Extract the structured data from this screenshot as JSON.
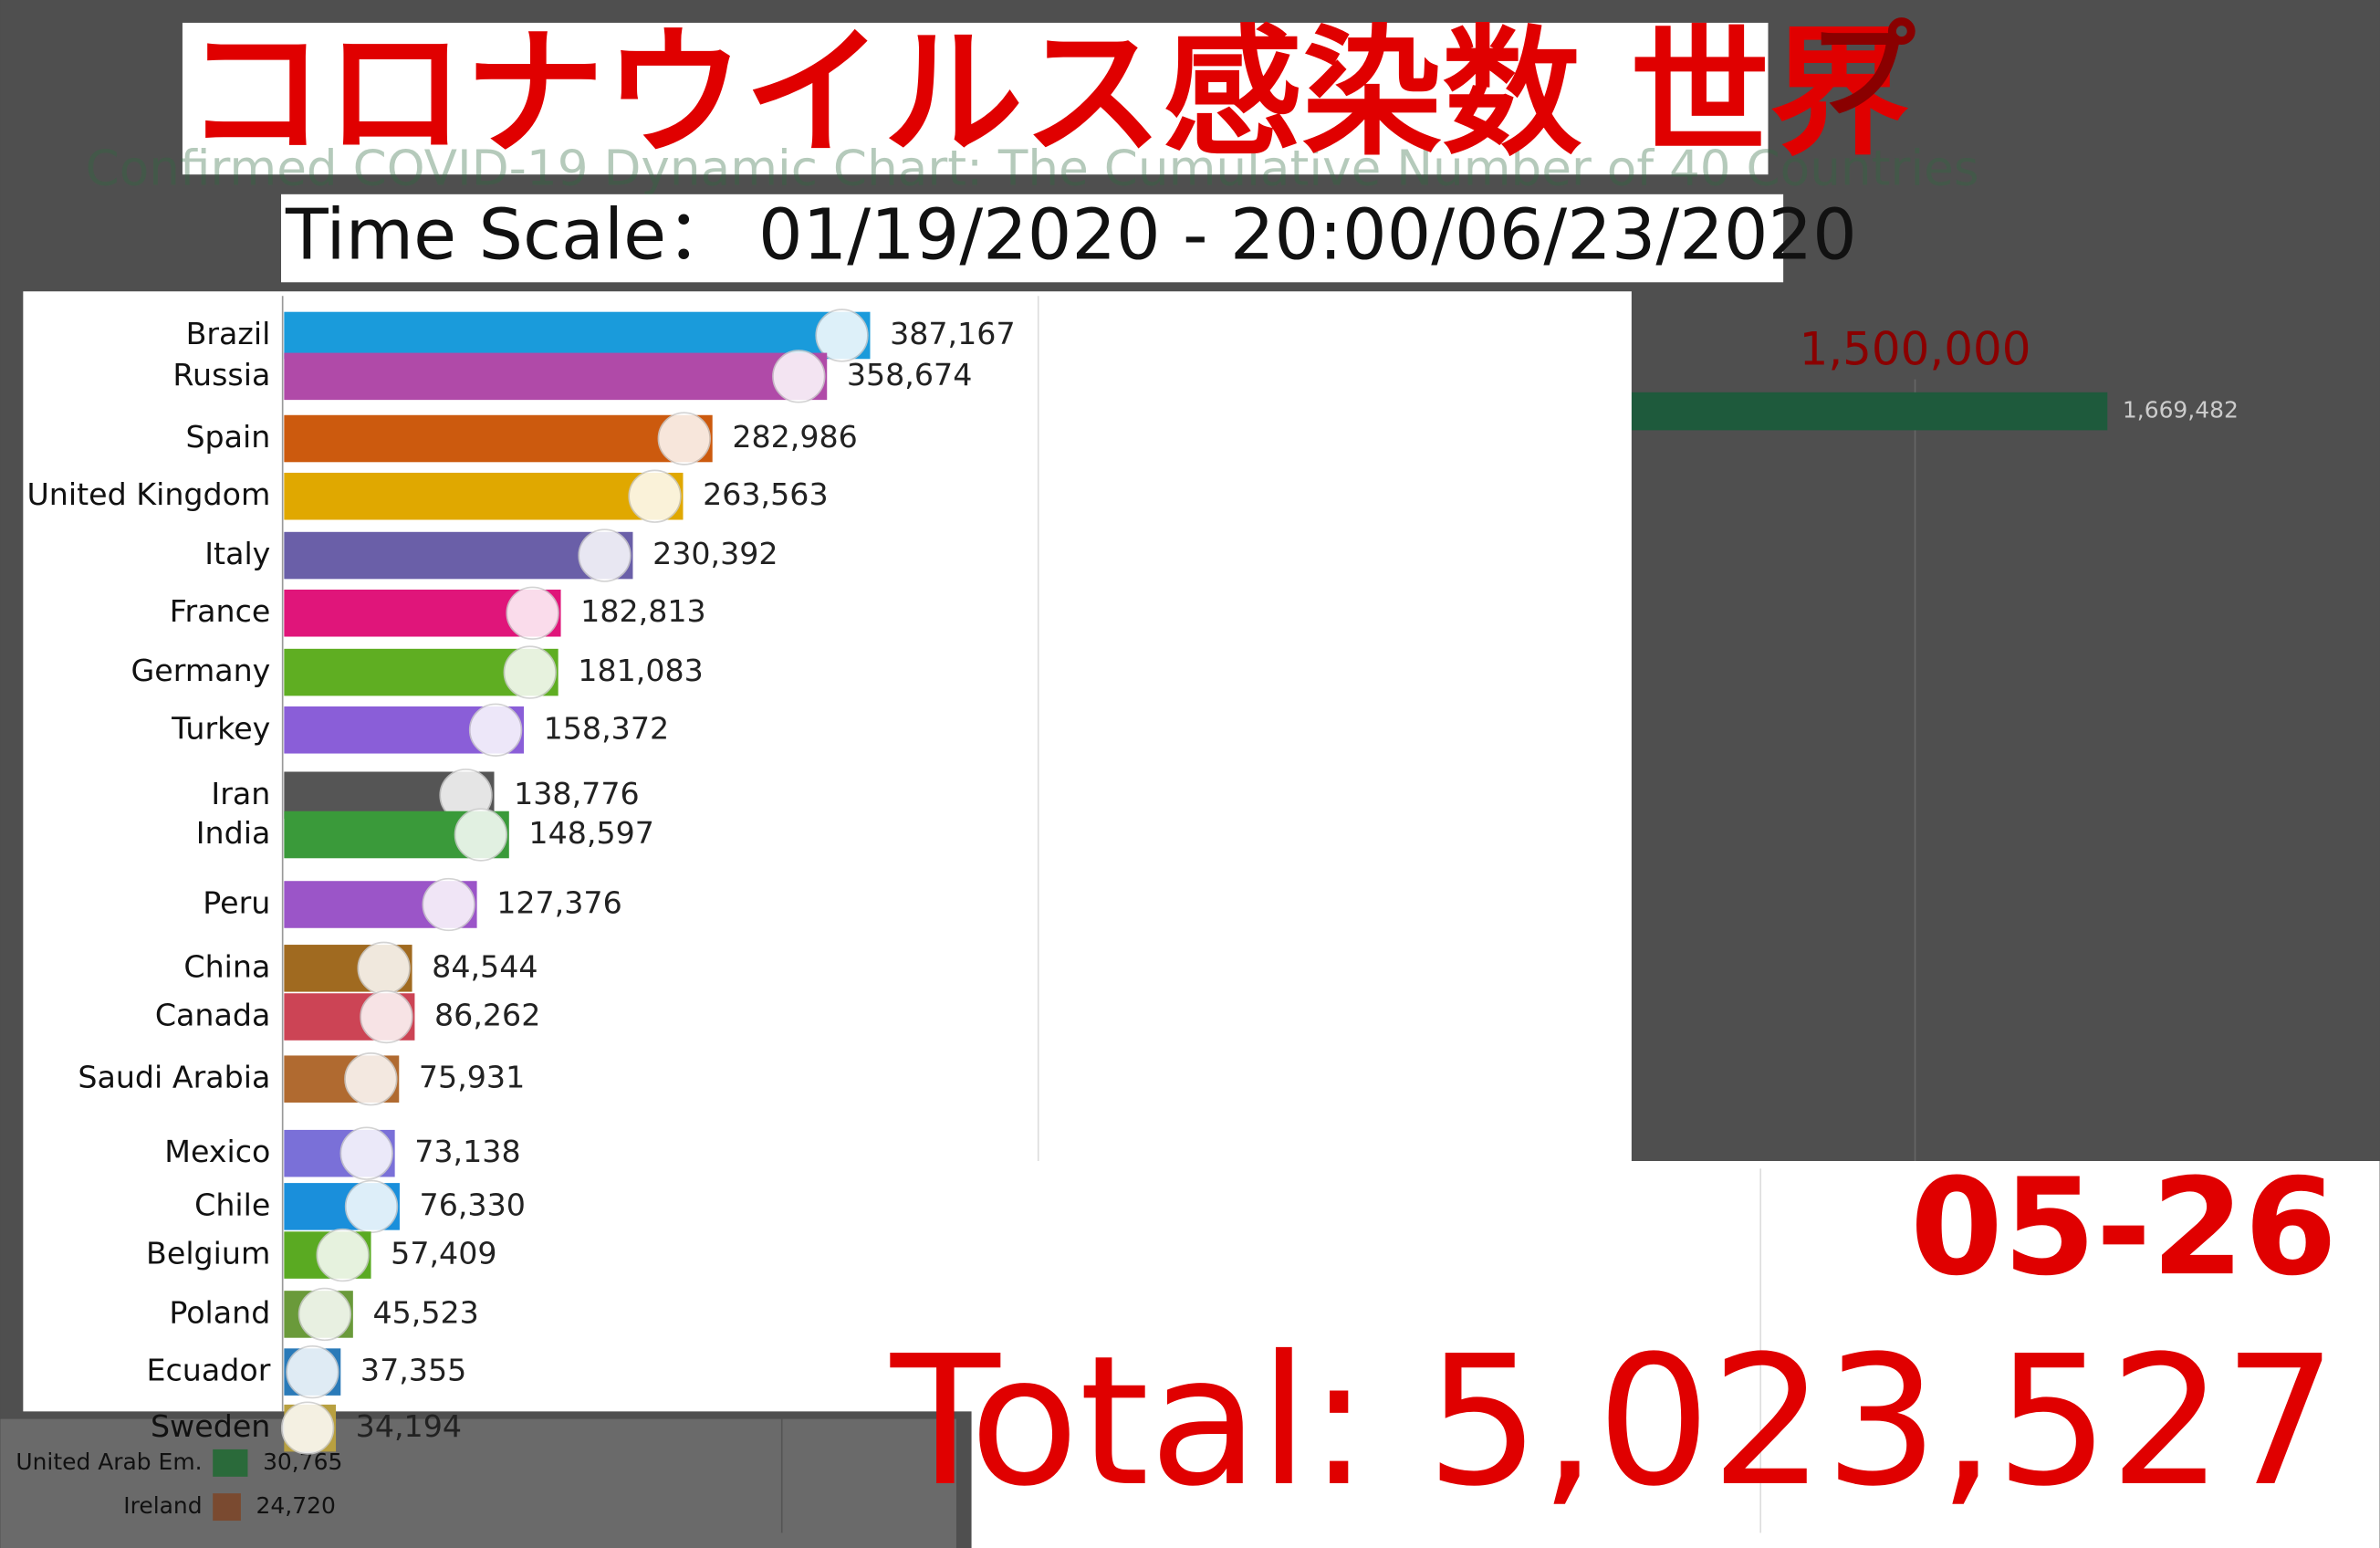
{
  "chart_data": [
    {
      "type": "barh",
      "title": "コロナウイルス感染数 世界",
      "title_fragment": "プ",
      "background_title": "Confirmed COVID-19 Dynamic Chart: The Cumulative Number of 40 Countries",
      "subtitle": "Time Scale： 01/19/2020 - 20:00/06/23/2020",
      "categories": [
        "Brazil",
        "Russia",
        "Spain",
        "United Kingdom",
        "Italy",
        "France",
        "Germany",
        "Turkey",
        "Iran",
        "India",
        "Peru",
        "China",
        "Canada",
        "Saudi Arabia",
        "Mexico",
        "Chile",
        "Belgium",
        "Poland",
        "Ecuador",
        "Sweden"
      ],
      "values": [
        387167,
        358674,
        282986,
        263563,
        230392,
        182813,
        181083,
        158372,
        138776,
        148597,
        127376,
        84544,
        86262,
        75931,
        73138,
        76330,
        57409,
        45523,
        37355,
        34194
      ],
      "value_labels": [
        "387,167",
        "358,674",
        "282,986",
        "263,563",
        "230,392",
        "182,813",
        "181,083",
        "158,372",
        "138,776",
        "148,597",
        "127,376",
        "84,544",
        "86,262",
        "75,931",
        "73,138",
        "76,330",
        "57,409",
        "45,523",
        "37,355",
        "34,194"
      ],
      "colors": [
        "#1a9bdb",
        "#b04aa8",
        "#cc5a0e",
        "#e0a800",
        "#6a5fa8",
        "#e0157a",
        "#5fae22",
        "#8a5ed8",
        "#555555",
        "#3a9a3a",
        "#9b55c8",
        "#a06a20",
        "#cc4455",
        "#b06a30",
        "#7a70d8",
        "#1a8fdb",
        "#5aaa22",
        "#6a9a3a",
        "#2a7ab8",
        "#b8a040"
      ],
      "xlim": [
        0,
        400000
      ],
      "date": "05-26",
      "total": "Total: 5,023,527"
    },
    {
      "type": "barh",
      "categories": [
        null,
        "United Arab Em.",
        "Ireland"
      ],
      "values": [
        1669482,
        30765,
        24720
      ],
      "value_labels": [
        "1,669,482",
        "30,765",
        "24,720"
      ],
      "colors": [
        "#1e5a3c",
        "#2a6a3a",
        "#7a4a30"
      ],
      "xlim": [
        0,
        1900000
      ],
      "xticks": [
        {
          "value": 1500000,
          "label": "1,500,000"
        }
      ]
    }
  ]
}
